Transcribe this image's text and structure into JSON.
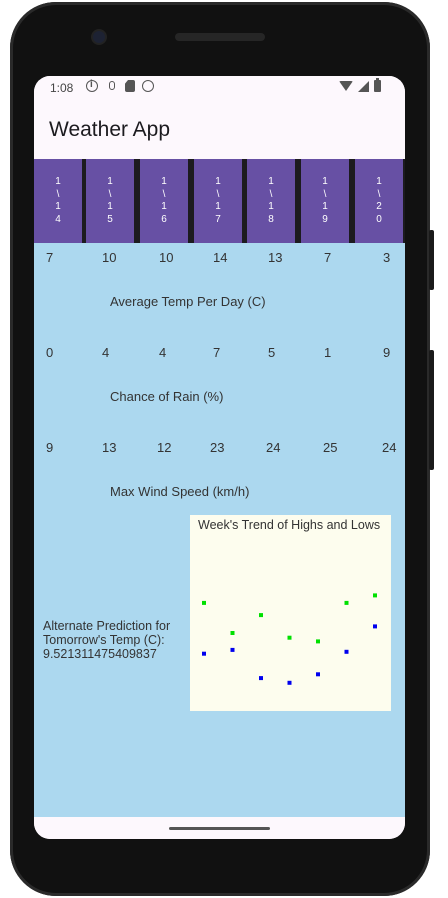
{
  "status_bar": {
    "time": "1:08",
    "left_icons": [
      "info-icon",
      "microphone-icon",
      "sd-card-icon",
      "face-icon"
    ],
    "right_icons": [
      "wifi-icon",
      "signal-icon",
      "battery-icon"
    ]
  },
  "app": {
    "title": "Weather App"
  },
  "colors": {
    "date_cell": "#6750a4",
    "content_bg": "#acd8ef",
    "high_point": "#00e000",
    "low_point": "#0000ee",
    "chart_bg": "#fdfdee"
  },
  "dates": [
    [
      "1",
      "\\",
      "1",
      "4"
    ],
    [
      "1",
      "\\",
      "1",
      "5"
    ],
    [
      "1",
      "\\",
      "1",
      "6"
    ],
    [
      "1",
      "\\",
      "1",
      "7"
    ],
    [
      "1",
      "\\",
      "1",
      "8"
    ],
    [
      "1",
      "\\",
      "1",
      "9"
    ],
    [
      "1",
      "\\",
      "2",
      "0"
    ]
  ],
  "sections": {
    "avg_temp": {
      "values": [
        "7",
        "10",
        "10",
        "14",
        "13",
        "7",
        "3"
      ],
      "caption": "Average Temp Per Day (C)"
    },
    "rain": {
      "values": [
        "0",
        "4",
        "4",
        "7",
        "5",
        "1",
        "9"
      ],
      "caption": "Chance of Rain (%)"
    },
    "wind": {
      "values": [
        "9",
        "13",
        "12",
        "23",
        "24",
        "25",
        "24"
      ],
      "caption": "Max Wind Speed (km/h)"
    }
  },
  "alt_prediction": {
    "label": "Alternate Prediction for Tomorrow's Temp (C):",
    "value": "9.521311475409837"
  },
  "chart_data": {
    "type": "scatter",
    "title": "Week's Trend of Highs and Lows",
    "xlabel": "",
    "ylabel": "",
    "grid": false,
    "x": [
      1,
      2,
      3,
      4,
      5,
      6,
      7
    ],
    "series": [
      {
        "color": "#00e000",
        "values": [
          11.5,
          8.3,
          10.2,
          7.8,
          7.4,
          11.5,
          12.3
        ]
      },
      {
        "color": "#0000ee",
        "values": [
          6.1,
          6.5,
          3.5,
          3.0,
          3.9,
          6.3,
          9.0
        ]
      }
    ],
    "ylim": [
      0,
      20
    ]
  }
}
